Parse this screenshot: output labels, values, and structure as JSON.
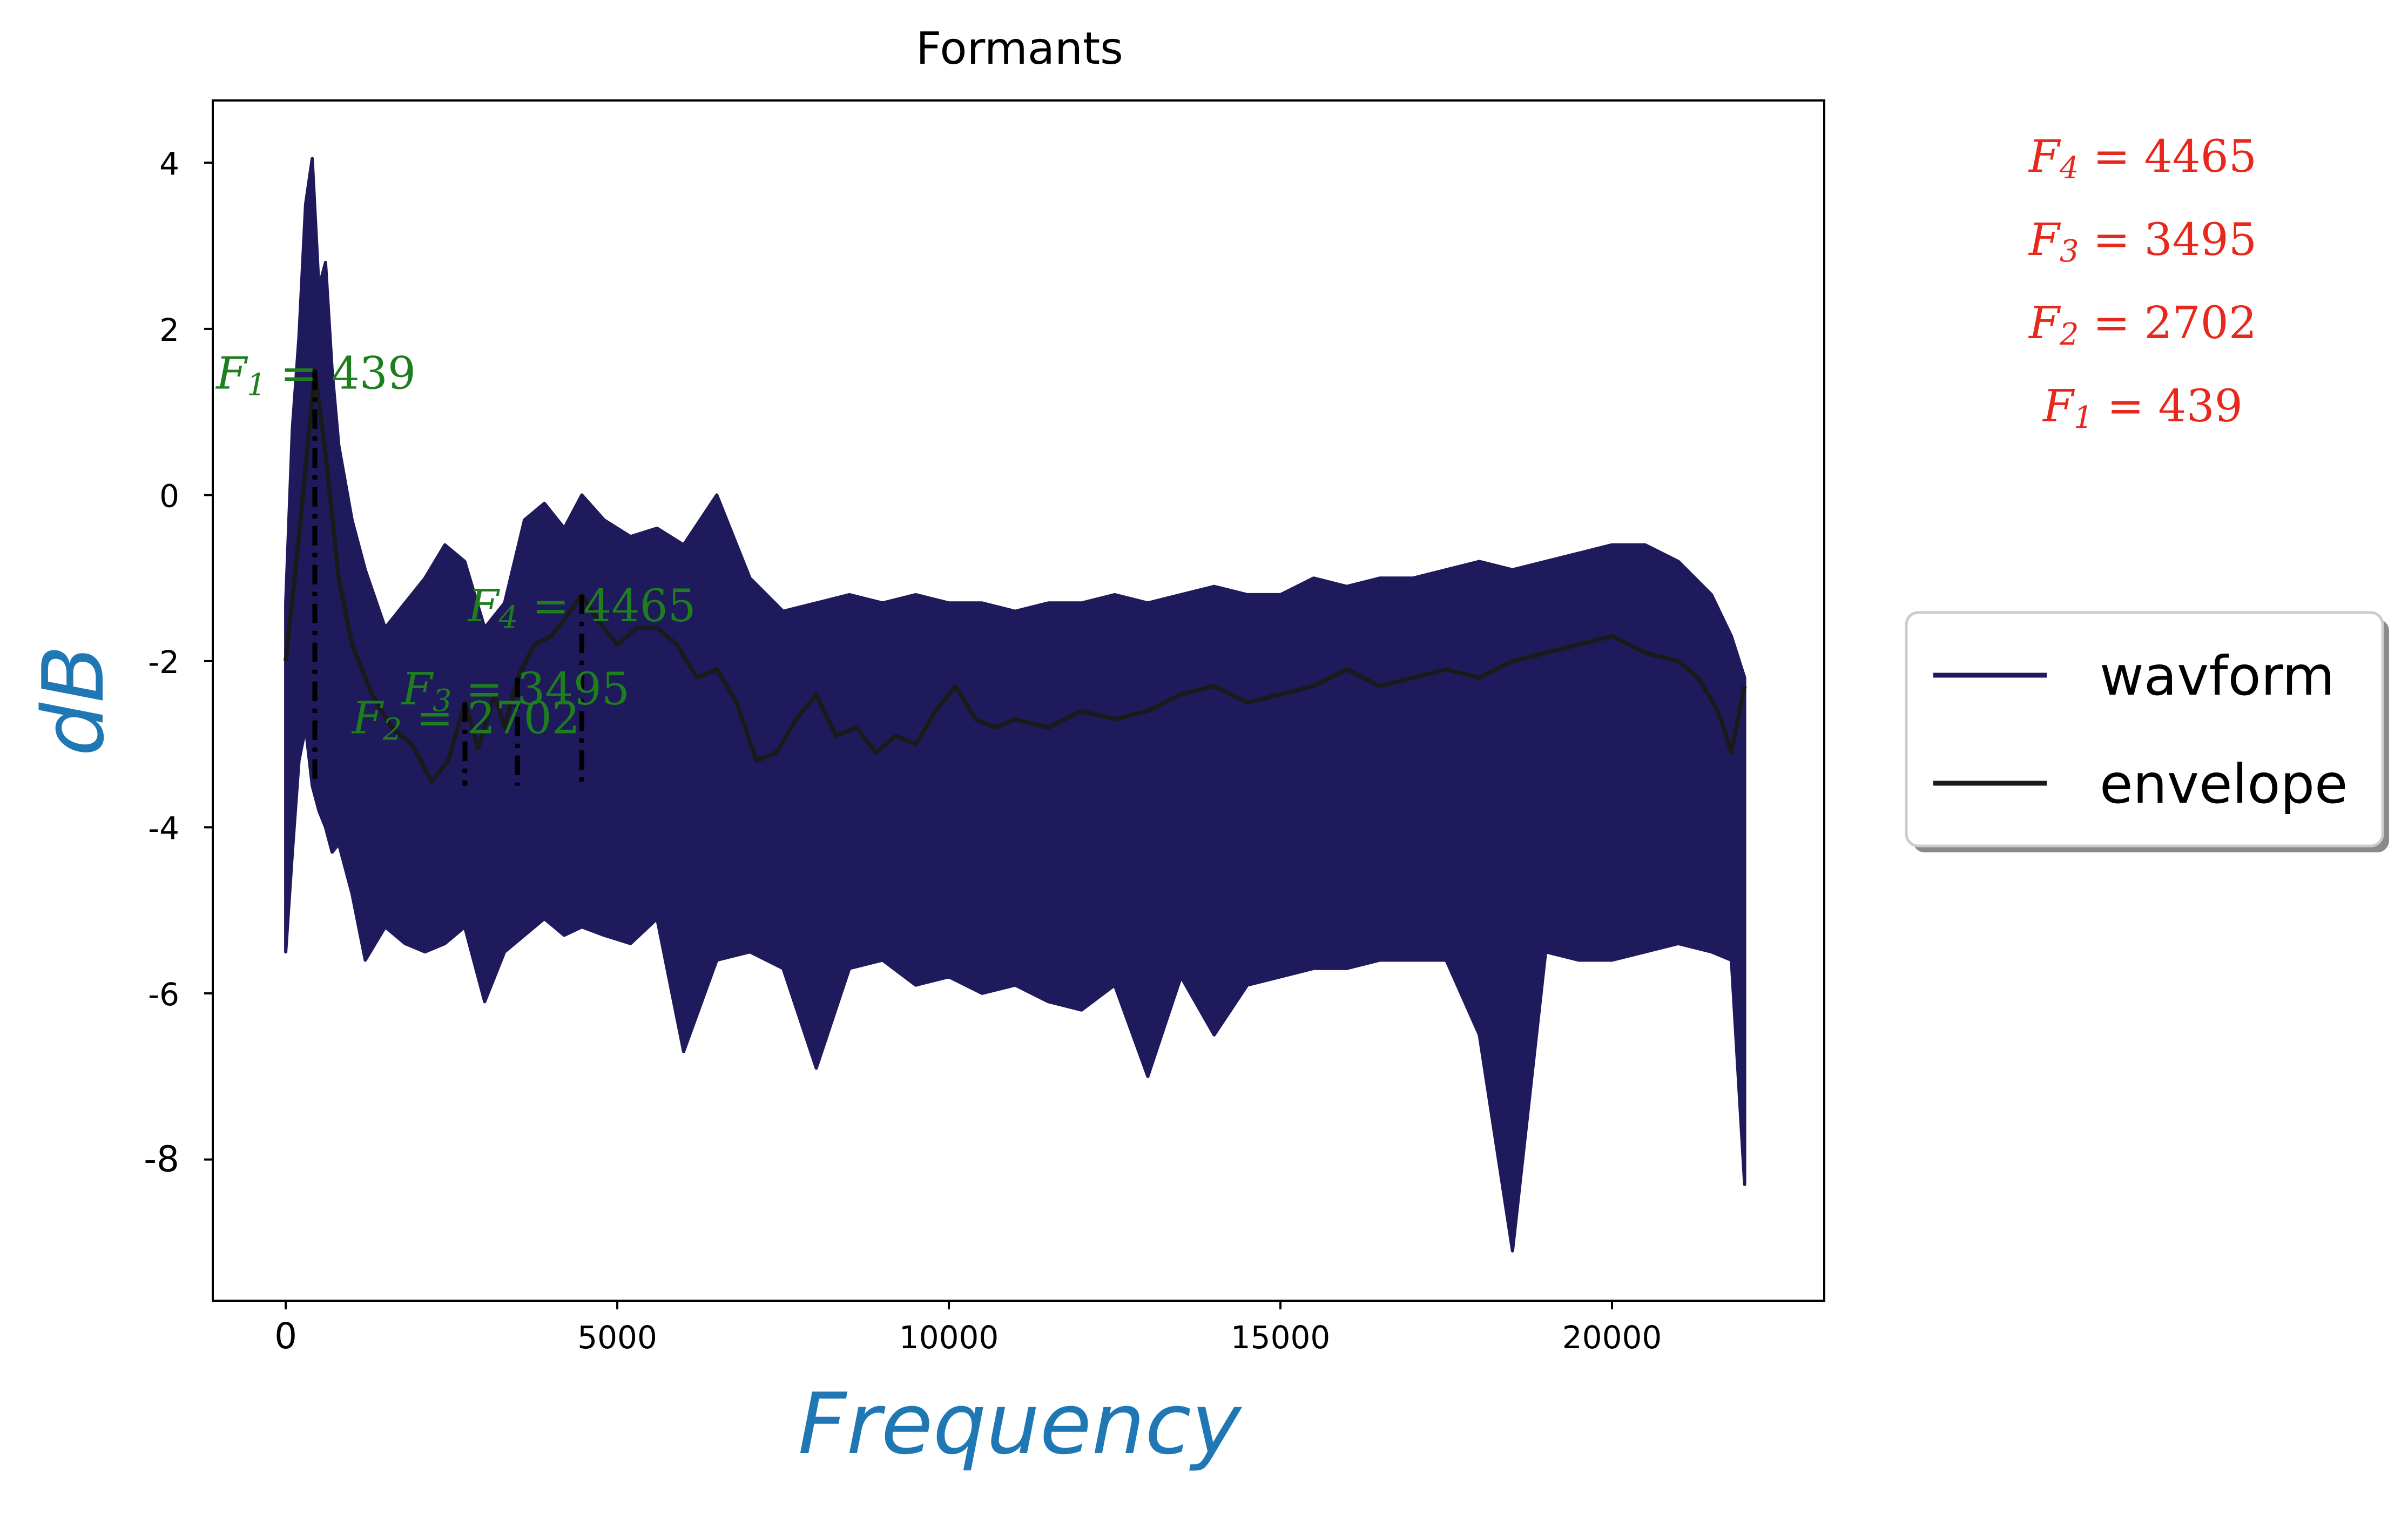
{
  "chart_data": {
    "type": "line",
    "title": "Formants",
    "xlabel": "Frequency",
    "ylabel": "dB",
    "xlim": [
      -1100,
      23200
    ],
    "ylim": [
      -9.7,
      4.75
    ],
    "xticks": [
      0,
      5000,
      10000,
      15000,
      20000
    ],
    "xtick_labels": [
      "0",
      "5000",
      "10000",
      "15000",
      "20000"
    ],
    "yticks": [
      4,
      2,
      0,
      -2,
      -4,
      -6,
      -8
    ],
    "ytick_labels": [
      "4",
      "2",
      "0",
      "-2",
      "-4",
      "-6",
      "-8"
    ],
    "grid": false,
    "legend": {
      "placement": "outside-right",
      "entries": [
        {
          "label": "wavform",
          "color": "#1f1a5c"
        },
        {
          "label": "envelope",
          "color": "#1a1a1a"
        }
      ]
    },
    "series": [
      {
        "name": "wavform",
        "color": "#1f1a5c",
        "x": [
          0,
          100,
          200,
          300,
          400,
          500,
          600,
          700,
          800,
          1000,
          1200,
          1500,
          1800,
          2100,
          2400,
          2700,
          3000,
          3300,
          3600,
          3900,
          4200,
          4465,
          4800,
          5200,
          5600,
          6000,
          6500,
          7000,
          7500,
          8000,
          8500,
          9000,
          9500,
          10000,
          10500,
          11000,
          11500,
          12000,
          12500,
          13000,
          13500,
          14000,
          14500,
          15000,
          15500,
          16000,
          16500,
          17000,
          17500,
          18000,
          18500,
          19000,
          19500,
          20000,
          20500,
          21000,
          21500,
          21800,
          22000
        ],
        "upper": [
          -1.3,
          0.8,
          1.9,
          3.5,
          4.05,
          2.5,
          2.8,
          1.5,
          0.6,
          -0.3,
          -0.9,
          -1.6,
          -1.3,
          -1.0,
          -0.6,
          -0.8,
          -1.6,
          -1.3,
          -0.3,
          -0.1,
          -0.4,
          0.0,
          -0.3,
          -0.5,
          -0.4,
          -0.6,
          0.0,
          -1.0,
          -1.4,
          -1.3,
          -1.2,
          -1.3,
          -1.2,
          -1.3,
          -1.3,
          -1.4,
          -1.3,
          -1.3,
          -1.2,
          -1.3,
          -1.2,
          -1.1,
          -1.2,
          -1.2,
          -1.0,
          -1.1,
          -1.0,
          -1.0,
          -0.9,
          -0.8,
          -0.9,
          -0.8,
          -0.7,
          -0.6,
          -0.6,
          -0.8,
          -1.2,
          -1.7,
          -2.2
        ],
        "lower": [
          -5.5,
          -4.3,
          -3.2,
          -2.8,
          -3.5,
          -3.8,
          -4.0,
          -4.3,
          -4.2,
          -4.8,
          -5.6,
          -5.2,
          -5.4,
          -5.5,
          -5.4,
          -5.2,
          -6.1,
          -5.5,
          -5.3,
          -5.1,
          -5.3,
          -5.2,
          -5.3,
          -5.4,
          -5.1,
          -6.7,
          -5.6,
          -5.5,
          -5.7,
          -6.9,
          -5.7,
          -5.6,
          -5.9,
          -5.8,
          -6.0,
          -5.9,
          -6.1,
          -6.2,
          -5.9,
          -7.0,
          -5.8,
          -6.5,
          -5.9,
          -5.8,
          -5.7,
          -5.7,
          -5.6,
          -5.6,
          -5.6,
          -6.5,
          -9.1,
          -5.5,
          -5.6,
          -5.6,
          -5.5,
          -5.4,
          -5.5,
          -5.6,
          -8.3
        ]
      },
      {
        "name": "envelope",
        "color": "#1a1a1a",
        "x": [
          0,
          200,
          439,
          600,
          800,
          1000,
          1300,
          1600,
          1900,
          2200,
          2450,
          2702,
          2900,
          3150,
          3300,
          3495,
          3750,
          4000,
          4200,
          4465,
          4700,
          5000,
          5300,
          5600,
          5900,
          6200,
          6500,
          6800,
          7100,
          7400,
          7700,
          8000,
          8300,
          8600,
          8900,
          9200,
          9500,
          9800,
          10100,
          10400,
          10700,
          11000,
          11500,
          12000,
          12500,
          13000,
          13500,
          14000,
          14500,
          15000,
          15500,
          16000,
          16500,
          17000,
          17500,
          18000,
          18500,
          19000,
          19500,
          20000,
          20500,
          21000,
          21300,
          21600,
          21800,
          22000
        ],
        "y": [
          -2.0,
          -0.5,
          1.5,
          0.5,
          -1.0,
          -1.8,
          -2.4,
          -2.8,
          -3.0,
          -3.45,
          -3.2,
          -2.5,
          -3.05,
          -2.4,
          -2.8,
          -2.2,
          -1.8,
          -1.7,
          -1.5,
          -1.2,
          -1.5,
          -1.8,
          -1.6,
          -1.6,
          -1.8,
          -2.2,
          -2.1,
          -2.5,
          -3.2,
          -3.1,
          -2.7,
          -2.4,
          -2.9,
          -2.8,
          -3.1,
          -2.9,
          -3.0,
          -2.6,
          -2.3,
          -2.7,
          -2.8,
          -2.7,
          -2.8,
          -2.6,
          -2.7,
          -2.6,
          -2.4,
          -2.3,
          -2.5,
          -2.4,
          -2.3,
          -2.1,
          -2.3,
          -2.2,
          -2.1,
          -2.2,
          -2.0,
          -1.9,
          -1.8,
          -1.7,
          -1.9,
          -2.0,
          -2.2,
          -2.6,
          -3.1,
          -2.3
        ]
      }
    ],
    "formant_lines": [
      {
        "x": 439,
        "y_top": 1.5,
        "y_bottom": -3.5
      },
      {
        "x": 2702,
        "y_top": -2.5,
        "y_bottom": -3.5
      },
      {
        "x": 3495,
        "y_top": -2.2,
        "y_bottom": -3.5
      },
      {
        "x": 4465,
        "y_top": -1.2,
        "y_bottom": -3.5
      }
    ],
    "annotations": [
      {
        "base": "F",
        "sub": "1",
        "tail": " = 439",
        "x": -1050,
        "y": 1.45,
        "color": "#1e7e1e"
      },
      {
        "base": "F",
        "sub": "2",
        "tail": " = 2702",
        "x": 1000,
        "y": -2.7,
        "color": "#1e7e1e"
      },
      {
        "base": "F",
        "sub": "3",
        "tail": " = 3495",
        "x": 1750,
        "y": -2.35,
        "color": "#1e7e1e"
      },
      {
        "base": "F",
        "sub": "4",
        "tail": " = 4465",
        "x": 2750,
        "y": -1.35,
        "color": "#1e7e1e"
      }
    ],
    "side_labels": [
      {
        "base": "F",
        "sub": "4",
        "tail": " = 4465"
      },
      {
        "base": "F",
        "sub": "3",
        "tail": " = 3495"
      },
      {
        "base": "F",
        "sub": "2",
        "tail": " = 2702"
      },
      {
        "base": "F",
        "sub": "1",
        "tail": " = 439"
      }
    ],
    "side_label_color": "#e8281c",
    "xlabel_color": "#1f77b4",
    "ylabel_color": "#1f77b4"
  }
}
